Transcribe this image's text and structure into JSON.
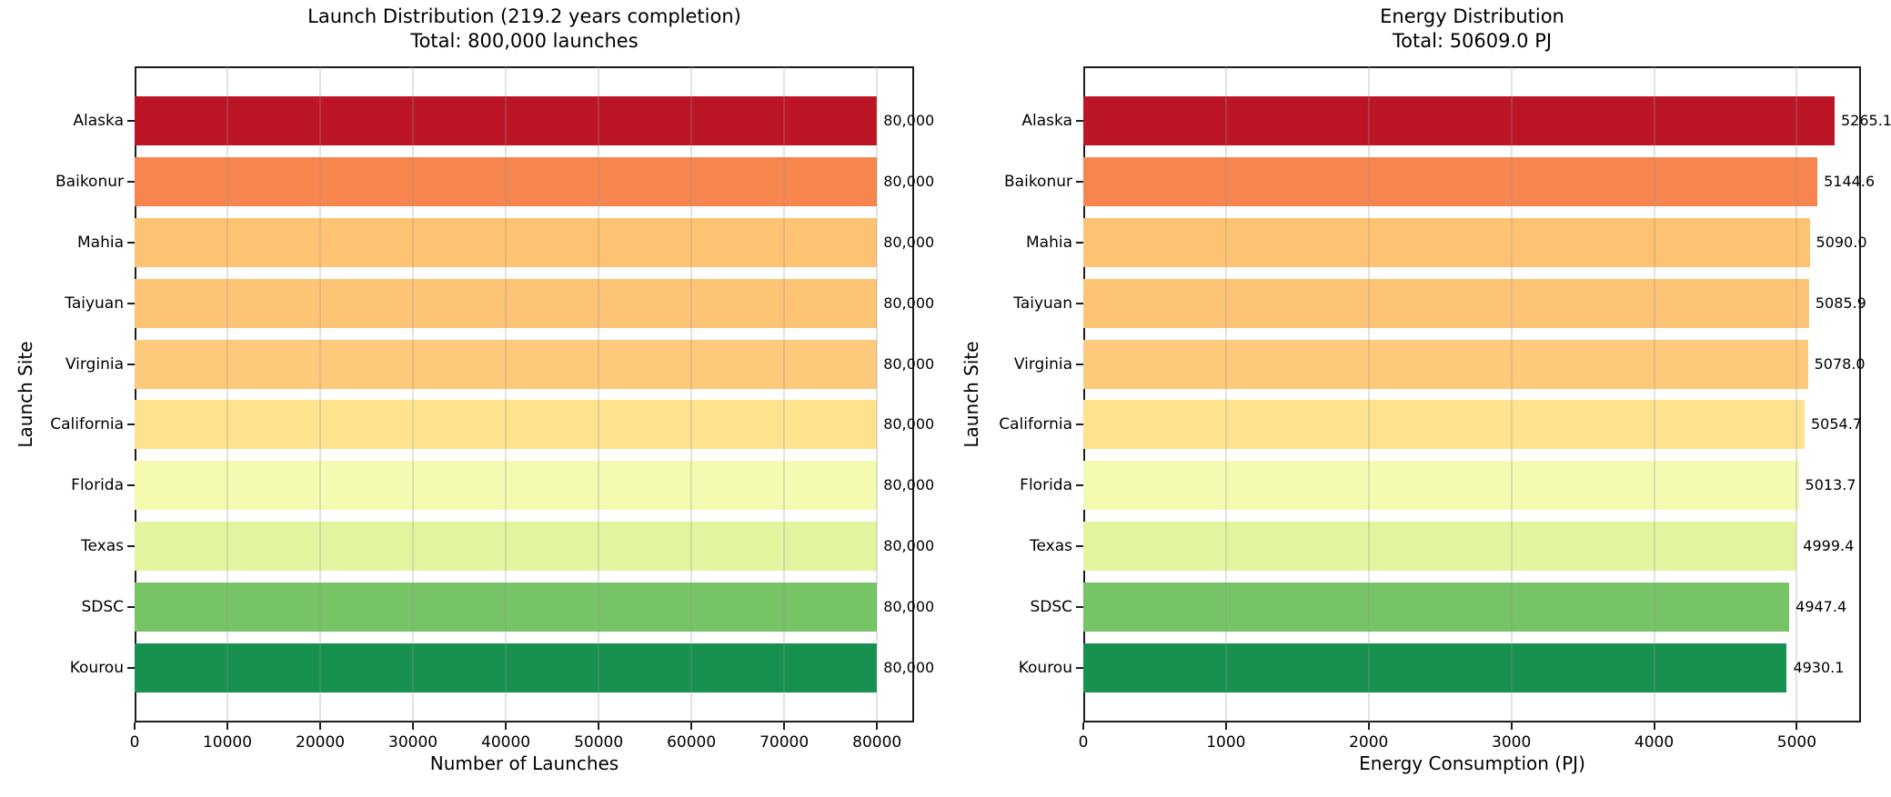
{
  "chart_data": [
    {
      "type": "bar",
      "orientation": "horizontal",
      "title": "Launch Distribution (219.2 years completion)",
      "subtitle": "Total: 800,000 launches",
      "xlabel": "Number of Launches",
      "ylabel": "Launch Site",
      "categories": [
        "Alaska",
        "Baikonur",
        "Mahia",
        "Taiyuan",
        "Virginia",
        "California",
        "Florida",
        "Texas",
        "SDSC",
        "Kourou"
      ],
      "values": [
        80000,
        80000,
        80000,
        80000,
        80000,
        80000,
        80000,
        80000,
        80000,
        80000
      ],
      "value_labels": [
        "80,000",
        "80,000",
        "80,000",
        "80,000",
        "80,000",
        "80,000",
        "80,000",
        "80,000",
        "80,000",
        "80,000"
      ],
      "xlim": [
        0,
        84000
      ],
      "xticks": [
        0,
        10000,
        20000,
        30000,
        40000,
        50000,
        60000,
        70000,
        80000
      ],
      "xtick_labels": [
        "0",
        "10000",
        "20000",
        "30000",
        "40000",
        "50000",
        "60000",
        "70000",
        "80000"
      ],
      "grid": true,
      "legend": false
    },
    {
      "type": "bar",
      "orientation": "horizontal",
      "title": "Energy Distribution",
      "subtitle": "Total: 50609.0 PJ",
      "xlabel": "Energy Consumption (PJ)",
      "ylabel": "Launch Site",
      "categories": [
        "Alaska",
        "Baikonur",
        "Mahia",
        "Taiyuan",
        "Virginia",
        "California",
        "Florida",
        "Texas",
        "SDSC",
        "Kourou"
      ],
      "values": [
        5265.1,
        5144.6,
        5090.0,
        5085.9,
        5078.0,
        5054.7,
        5013.7,
        4999.4,
        4947.4,
        4930.1
      ],
      "value_labels": [
        "5265.1",
        "5144.6",
        "5090.0",
        "5085.9",
        "5078.0",
        "5054.7",
        "5013.7",
        "4999.4",
        "4947.4",
        "4930.1"
      ],
      "xlim": [
        0,
        5450
      ],
      "xticks": [
        0,
        1000,
        2000,
        3000,
        4000,
        5000
      ],
      "xtick_labels": [
        "0",
        "1000",
        "2000",
        "3000",
        "4000",
        "5000"
      ],
      "grid": true,
      "legend": false
    }
  ],
  "colors": {
    "bar_colors": [
      "#bc1626",
      "#f7864e",
      "#fdc272",
      "#fdc475",
      "#fdc97a",
      "#ffe28e",
      "#f4fab0",
      "#e3f49e",
      "#76c465",
      "#17914f"
    ],
    "grid_line": "#969696",
    "axis_spine": "#1c1c1c",
    "text": "#000000",
    "background": "#ffffff"
  }
}
